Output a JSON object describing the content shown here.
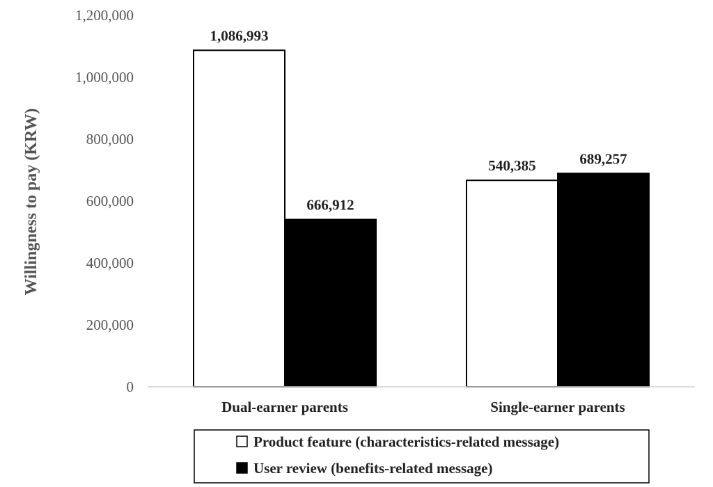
{
  "chart_data": {
    "type": "bar",
    "categories": [
      "Dual-earner parents",
      "Single-earner parents"
    ],
    "series": [
      {
        "name": "Product feature (characteristics-related message)",
        "values": [
          1086993,
          666912
        ],
        "color": "#ffffff"
      },
      {
        "name": "User review (benefits-related message)",
        "values": [
          540385,
          689257
        ],
        "color": "#000000"
      }
    ],
    "data_labels": [
      [
        "1,086,993",
        "540,385"
      ],
      [
        "666,912",
        "689,257"
      ]
    ],
    "ylabel": "Willingness to pay (KRW)",
    "xlabel": "",
    "ylim": [
      0,
      1200000
    ],
    "yticks": [
      "0",
      "200,000",
      "400,000",
      "600,000",
      "800,000",
      "1,000,000",
      "1,200,000"
    ],
    "ytick_values": [
      0,
      200000,
      400000,
      600000,
      800000,
      1000000,
      1200000
    ],
    "grid": false,
    "legend_position": "bottom"
  }
}
